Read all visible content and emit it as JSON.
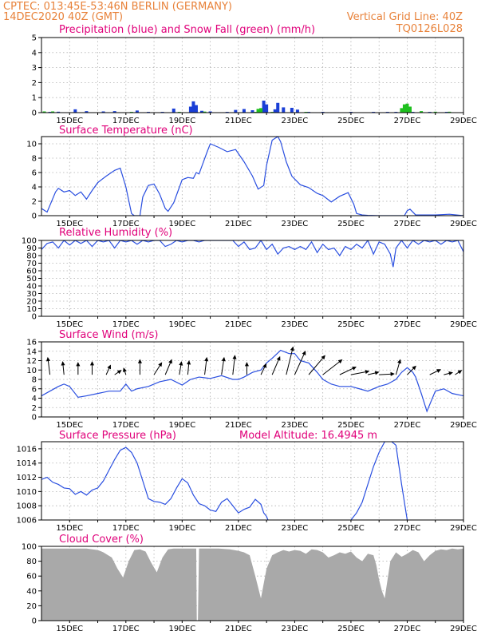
{
  "header": {
    "line1": "CPTEC: 013:45E-53:46N BERLIN (GERMANY)",
    "line2_left": "14DEC2020 40Z (GMT)",
    "line2_right": "Vertical Grid Line: 40Z",
    "line3_right": "TQ0126L028"
  },
  "colors": {
    "header": "#e8823a",
    "title": "#e0007a",
    "precip": "#1a3fd6",
    "snow": "#1fc01f",
    "line": "#2a4fe0",
    "cloud": "#a9a9a9",
    "arrow": "#000000"
  },
  "x_axis": {
    "labels": [
      "15DEC",
      "17DEC",
      "19DEC",
      "21DEC",
      "23DEC",
      "25DEC",
      "27DEC",
      "29DEC"
    ],
    "label_days": [
      15,
      17,
      19,
      21,
      23,
      25,
      27,
      29
    ],
    "grid_days": [
      15,
      16,
      17,
      18,
      19,
      20,
      21,
      22,
      23,
      24,
      25,
      26,
      27,
      28,
      29
    ],
    "xlim": [
      14,
      29
    ]
  },
  "chart_data": [
    {
      "id": "precip",
      "type": "bar",
      "title": "Precipitation (blue) and Snow Fall (green) (mm/h)",
      "ylim": [
        0,
        5
      ],
      "yticks": [
        0,
        1,
        2,
        3,
        4,
        5
      ],
      "grid": true,
      "series": [
        {
          "name": "Precipitation",
          "x": [
            14.3,
            14.6,
            15.2,
            15.6,
            16.2,
            16.6,
            17.4,
            17.8,
            18.3,
            18.7,
            19.3,
            19.4,
            19.5,
            19.7,
            20.0,
            20.6,
            20.9,
            21.2,
            21.5,
            21.8,
            21.9,
            22.0,
            22.3,
            22.4,
            22.6,
            22.9,
            23.1,
            23.5,
            24.0,
            25.0,
            25.8,
            26.3,
            26.6,
            27.2,
            27.8,
            28.4
          ],
          "values": [
            0.05,
            0.06,
            0.22,
            0.1,
            0.08,
            0.1,
            0.14,
            0.05,
            0.05,
            0.27,
            0.4,
            0.75,
            0.5,
            0.12,
            0.08,
            0.05,
            0.18,
            0.24,
            0.16,
            0.12,
            0.8,
            0.55,
            0.22,
            0.65,
            0.35,
            0.32,
            0.2,
            0.05,
            0.05,
            0.05,
            0.05,
            0.05,
            0.05,
            0.05,
            0.05,
            0.05
          ]
        },
        {
          "name": "Snow Fall",
          "x": [
            14.1,
            14.4,
            17.2,
            18.9,
            19.8,
            21.6,
            21.7,
            21.8,
            22.2,
            23.4,
            26.8,
            26.9,
            27.0,
            27.1,
            27.5,
            28.0,
            28.5
          ],
          "values": [
            0.08,
            0.08,
            0.05,
            0.05,
            0.07,
            0.05,
            0.25,
            0.3,
            0.05,
            0.05,
            0.3,
            0.55,
            0.6,
            0.4,
            0.1,
            0.06,
            0.06
          ]
        }
      ]
    },
    {
      "id": "temperature",
      "type": "line",
      "title": "Surface Temperature (nC)",
      "ylim": [
        0,
        11
      ],
      "yticks": [
        0,
        2,
        4,
        6,
        8,
        10
      ],
      "grid": true,
      "series": [
        {
          "name": "",
          "x": [
            14.0,
            14.2,
            14.5,
            14.6,
            14.8,
            15.0,
            15.2,
            15.4,
            15.6,
            15.8,
            16.0,
            16.3,
            16.6,
            16.8,
            17.0,
            17.2,
            17.3,
            17.5,
            17.6,
            17.8,
            18.0,
            18.2,
            18.4,
            18.5,
            18.7,
            19.0,
            19.2,
            19.4,
            19.5,
            19.6,
            19.9,
            20.0,
            20.3,
            20.6,
            20.9,
            21.2,
            21.5,
            21.7,
            21.9,
            22.0,
            22.2,
            22.4,
            22.5,
            22.7,
            22.9,
            23.2,
            23.5,
            23.8,
            24.0,
            24.3,
            24.6,
            24.9,
            25.1,
            25.2,
            25.4,
            25.6,
            26.0,
            26.5,
            26.9,
            27.0,
            27.1,
            27.3,
            28.0,
            28.5,
            29.0
          ],
          "values": [
            1.0,
            0.5,
            3.3,
            3.8,
            3.3,
            3.5,
            2.8,
            3.3,
            2.3,
            3.5,
            4.6,
            5.5,
            6.3,
            6.6,
            4.0,
            0.3,
            0.0,
            0.0,
            2.6,
            4.2,
            4.4,
            3.0,
            1.0,
            0.6,
            1.8,
            5.0,
            5.3,
            5.2,
            6.0,
            5.8,
            9.0,
            10.0,
            9.5,
            8.9,
            9.2,
            7.5,
            5.5,
            3.7,
            4.2,
            7.0,
            10.5,
            11.0,
            10.3,
            7.5,
            5.5,
            4.3,
            3.9,
            3.1,
            2.8,
            1.9,
            2.7,
            3.2,
            1.6,
            0.3,
            0.1,
            0.05,
            0.0,
            0.0,
            0.0,
            0.7,
            0.9,
            0.1,
            0.1,
            0.2,
            0.0
          ]
        }
      ]
    },
    {
      "id": "humidity",
      "type": "line",
      "title": "Relative Humidity (%)",
      "ylim": [
        0,
        100
      ],
      "yticks": [
        0,
        10,
        20,
        30,
        40,
        50,
        60,
        70,
        80,
        90,
        100
      ],
      "grid": true,
      "series": [
        {
          "name": "",
          "x": [
            14.0,
            14.2,
            14.4,
            14.6,
            14.8,
            15.0,
            15.2,
            15.4,
            15.6,
            15.8,
            16.0,
            16.2,
            16.4,
            16.6,
            16.8,
            17.0,
            17.2,
            17.4,
            17.6,
            17.8,
            18.0,
            18.2,
            18.4,
            18.6,
            18.8,
            19.0,
            19.2,
            19.4,
            19.6,
            19.8,
            20.0,
            20.2,
            20.4,
            20.6,
            20.8,
            21.0,
            21.2,
            21.4,
            21.6,
            21.8,
            22.0,
            22.2,
            22.4,
            22.6,
            22.8,
            23.0,
            23.2,
            23.4,
            23.6,
            23.8,
            24.0,
            24.2,
            24.4,
            24.6,
            24.8,
            25.0,
            25.2,
            25.4,
            25.6,
            25.8,
            26.0,
            26.2,
            26.4,
            26.5,
            26.6,
            26.8,
            27.0,
            27.2,
            27.4,
            27.6,
            27.8,
            28.0,
            28.2,
            28.4,
            28.6,
            28.8,
            29.0
          ],
          "values": [
            88,
            96,
            98,
            90,
            100,
            94,
            100,
            96,
            100,
            92,
            100,
            98,
            100,
            90,
            100,
            98,
            100,
            95,
            100,
            98,
            100,
            100,
            92,
            95,
            100,
            98,
            100,
            100,
            98,
            100,
            100,
            100,
            100,
            100,
            100,
            92,
            98,
            88,
            90,
            100,
            88,
            95,
            82,
            90,
            92,
            88,
            92,
            88,
            98,
            84,
            95,
            88,
            90,
            80,
            92,
            88,
            95,
            90,
            100,
            82,
            98,
            95,
            82,
            65,
            90,
            100,
            90,
            100,
            95,
            100,
            98,
            100,
            95,
            100,
            98,
            100,
            85
          ]
        }
      ]
    },
    {
      "id": "wind",
      "type": "line",
      "title": "Surface Wind (m/s)",
      "ylim": [
        0,
        16
      ],
      "yticks": [
        0,
        2,
        4,
        6,
        8,
        10,
        12,
        14,
        16
      ],
      "grid": true,
      "series": [
        {
          "name": "",
          "x": [
            14.0,
            14.3,
            14.6,
            14.8,
            15.0,
            15.3,
            15.6,
            16.0,
            16.4,
            16.8,
            17.0,
            17.2,
            17.4,
            17.8,
            18.2,
            18.6,
            19.0,
            19.3,
            19.6,
            20.0,
            20.4,
            20.8,
            21.0,
            21.2,
            21.5,
            21.8,
            22.0,
            22.2,
            22.5,
            22.8,
            23.0,
            23.2,
            23.5,
            23.8,
            24.0,
            24.3,
            24.6,
            25.0,
            25.3,
            25.6,
            26.0,
            26.3,
            26.6,
            26.8,
            27.0,
            27.2,
            27.3,
            27.5,
            27.7,
            28.0,
            28.3,
            28.6,
            29.0
          ],
          "values": [
            4.5,
            5.5,
            6.5,
            7.0,
            6.5,
            4.2,
            4.5,
            5.0,
            5.5,
            5.5,
            7.0,
            5.5,
            6.0,
            6.5,
            7.5,
            8.0,
            6.8,
            8.0,
            8.5,
            8.2,
            8.8,
            8.0,
            8.0,
            8.5,
            9.5,
            10.0,
            11.5,
            12.5,
            14.2,
            13.5,
            13.5,
            12.0,
            11.5,
            9.5,
            8.0,
            7.0,
            6.5,
            6.5,
            6.0,
            5.5,
            6.5,
            7.0,
            8.0,
            9.5,
            10.5,
            9.5,
            8.5,
            5.0,
            1.2,
            5.5,
            6.0,
            5.0,
            4.5
          ]
        }
      ],
      "barbs": [
        {
          "x": 14.3,
          "u": -0.5,
          "v": 4.0
        },
        {
          "x": 14.8,
          "u": -0.3,
          "v": 3.0
        },
        {
          "x": 15.3,
          "u": 0.0,
          "v": 2.8
        },
        {
          "x": 15.8,
          "u": 0.0,
          "v": 3.0
        },
        {
          "x": 16.3,
          "u": 1.0,
          "v": 2.2
        },
        {
          "x": 16.6,
          "u": 1.5,
          "v": 1.0
        },
        {
          "x": 17.0,
          "u": -0.5,
          "v": 1.5
        },
        {
          "x": 17.5,
          "u": 0.0,
          "v": 3.5
        },
        {
          "x": 18.0,
          "u": 1.8,
          "v": 2.8
        },
        {
          "x": 18.4,
          "u": 1.5,
          "v": 3.5
        },
        {
          "x": 18.9,
          "u": 0.5,
          "v": 3.0
        },
        {
          "x": 19.2,
          "u": 0.3,
          "v": 3.2
        },
        {
          "x": 19.8,
          "u": 0.5,
          "v": 4.0
        },
        {
          "x": 20.4,
          "u": 0.6,
          "v": 4.0
        },
        {
          "x": 20.8,
          "u": 0.5,
          "v": 4.5
        },
        {
          "x": 21.3,
          "u": 0.0,
          "v": 2.8
        },
        {
          "x": 21.8,
          "u": 1.2,
          "v": 2.5
        },
        {
          "x": 22.2,
          "u": 1.8,
          "v": 4.2
        },
        {
          "x": 22.7,
          "u": 1.6,
          "v": 6.5
        },
        {
          "x": 23.0,
          "u": 2.5,
          "v": 5.5
        },
        {
          "x": 23.5,
          "u": 3.8,
          "v": 4.5
        },
        {
          "x": 24.0,
          "u": 4.5,
          "v": 3.5
        },
        {
          "x": 24.6,
          "u": 3.8,
          "v": 1.8
        },
        {
          "x": 25.0,
          "u": 4.2,
          "v": 0.8
        },
        {
          "x": 25.6,
          "u": 2.5,
          "v": 0.6
        },
        {
          "x": 26.0,
          "u": 3.5,
          "v": 0.2
        },
        {
          "x": 26.6,
          "u": 1.0,
          "v": 3.5
        },
        {
          "x": 27.0,
          "u": 2.0,
          "v": 2.0
        },
        {
          "x": 27.8,
          "u": 2.5,
          "v": 1.2
        },
        {
          "x": 28.3,
          "u": 2.0,
          "v": 0.5
        },
        {
          "x": 28.7,
          "u": 1.5,
          "v": 1.0
        }
      ]
    },
    {
      "id": "pressure",
      "type": "line",
      "title": "Surface Pressure (hPa)",
      "annotation": "Model Altitude: 16.4945 m",
      "ylim": [
        1006,
        1017
      ],
      "yticks": [
        1006,
        1008,
        1010,
        1012,
        1014,
        1016
      ],
      "grid": true,
      "series": [
        {
          "name": "",
          "x": [
            14.0,
            14.2,
            14.4,
            14.6,
            14.8,
            15.0,
            15.2,
            15.4,
            15.6,
            15.8,
            16.0,
            16.2,
            16.4,
            16.6,
            16.8,
            17.0,
            17.2,
            17.4,
            17.6,
            17.8,
            18.0,
            18.2,
            18.4,
            18.6,
            18.8,
            19.0,
            19.2,
            19.4,
            19.6,
            19.8,
            20.0,
            20.2,
            20.4,
            20.6,
            20.8,
            21.0,
            21.2,
            21.4,
            21.6,
            21.8,
            21.9,
            22.0,
            22.05
          ],
          "values": [
            1011.7,
            1012.0,
            1011.3,
            1011.0,
            1010.5,
            1010.4,
            1009.6,
            1010.0,
            1009.5,
            1010.2,
            1010.5,
            1011.5,
            1013.0,
            1014.5,
            1015.8,
            1016.2,
            1015.5,
            1014.0,
            1011.5,
            1009.0,
            1008.6,
            1008.5,
            1008.2,
            1009.0,
            1010.5,
            1011.8,
            1011.2,
            1009.5,
            1008.3,
            1008.0,
            1007.4,
            1007.2,
            1008.5,
            1009.0,
            1008.0,
            1007.0,
            1007.5,
            1007.8,
            1008.9,
            1008.2,
            1007.0,
            1006.5,
            1006.0
          ]
        },
        {
          "name": "",
          "x": [
            25.0,
            25.2,
            25.4,
            25.6,
            25.8,
            26.0,
            26.2,
            26.3,
            26.6,
            26.8,
            27.0
          ],
          "values": [
            1006.0,
            1007.0,
            1008.5,
            1011.0,
            1013.5,
            1015.5,
            1017.0,
            1017.5,
            1016.5,
            1011.0,
            1006.0
          ]
        }
      ]
    },
    {
      "id": "cloud",
      "type": "area",
      "title": "Cloud Cover (%)",
      "ylim": [
        0,
        100
      ],
      "yticks": [
        0,
        20,
        40,
        60,
        80,
        100
      ],
      "grid": true,
      "series": [
        {
          "name": "",
          "x": [
            14.0,
            14.4,
            14.8,
            15.2,
            15.6,
            16.0,
            16.2,
            16.5,
            16.7,
            16.9,
            17.1,
            17.3,
            17.5,
            17.7,
            17.9,
            18.1,
            18.3,
            18.5,
            18.7,
            19.0,
            19.3,
            19.5,
            19.52,
            19.56,
            19.6,
            19.9,
            20.3,
            20.7,
            21.0,
            21.2,
            21.4,
            21.6,
            21.8,
            22.0,
            22.2,
            22.4,
            22.6,
            22.8,
            23.0,
            23.2,
            23.4,
            23.6,
            23.8,
            24.0,
            24.2,
            24.4,
            24.6,
            24.8,
            25.0,
            25.2,
            25.4,
            25.6,
            25.8,
            25.9,
            26.0,
            26.1,
            26.2,
            26.4,
            26.6,
            26.8,
            27.0,
            27.2,
            27.4,
            27.6,
            27.8,
            28.0,
            28.2,
            28.4,
            28.6,
            28.8,
            29.0
          ],
          "values": [
            97,
            97,
            97,
            97,
            97,
            95,
            92,
            85,
            70,
            58,
            80,
            95,
            96,
            93,
            78,
            65,
            85,
            96,
            97,
            97,
            97,
            97,
            0,
            0,
            97,
            97,
            97,
            96,
            94,
            92,
            88,
            60,
            30,
            70,
            88,
            92,
            95,
            93,
            95,
            94,
            90,
            96,
            95,
            92,
            85,
            88,
            92,
            90,
            93,
            85,
            80,
            90,
            88,
            75,
            55,
            40,
            30,
            80,
            92,
            86,
            90,
            95,
            92,
            80,
            88,
            94,
            96,
            95,
            97,
            96,
            97
          ]
        }
      ]
    }
  ]
}
